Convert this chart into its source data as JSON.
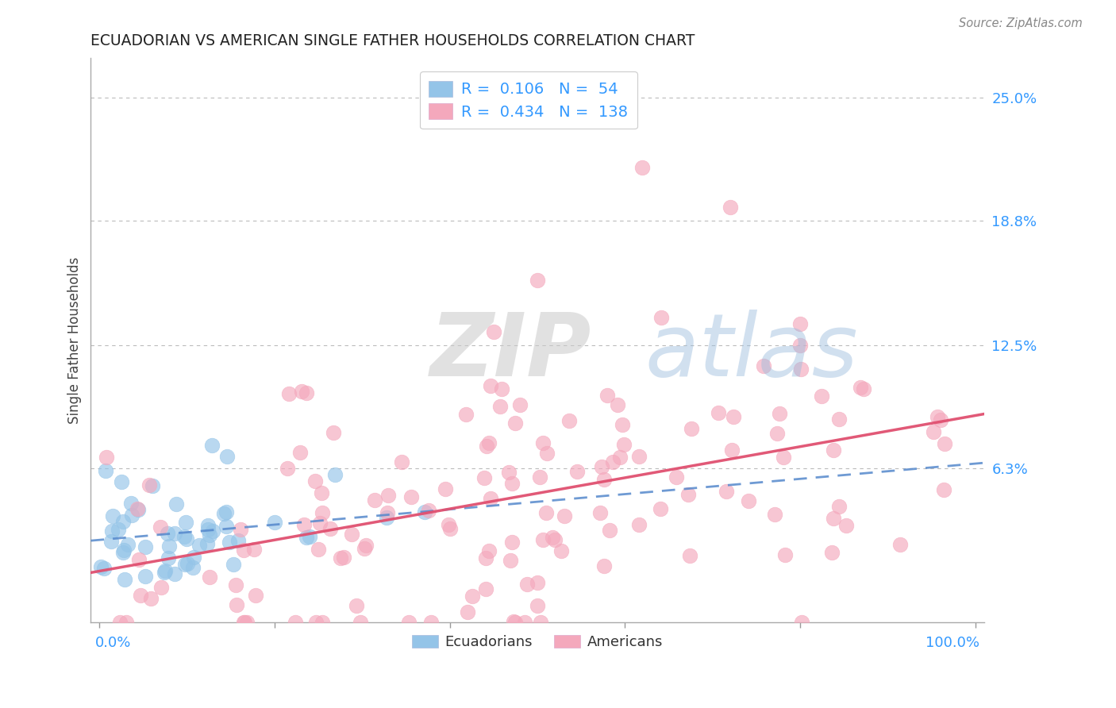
{
  "title": "ECUADORIAN VS AMERICAN SINGLE FATHER HOUSEHOLDS CORRELATION CHART",
  "source": "Source: ZipAtlas.com",
  "ylabel": "Single Father Households",
  "y_ticks": [
    0.0,
    0.063,
    0.125,
    0.188,
    0.25
  ],
  "y_tick_labels": [
    "",
    "6.3%",
    "12.5%",
    "18.8%",
    "25.0%"
  ],
  "ylim": [
    -0.015,
    0.27
  ],
  "xlim": [
    -0.01,
    1.01
  ],
  "blue_color": "#94C4E8",
  "pink_color": "#F4A8BC",
  "trend_blue_color": "#5588CC",
  "trend_pink_color": "#E05070",
  "r_blue": 0.106,
  "n_blue": 54,
  "r_pink": 0.434,
  "n_pink": 138,
  "background_color": "#FFFFFF",
  "grid_color": "#BBBBBB",
  "title_color": "#222222",
  "axis_label_color": "#3399FF",
  "source_color": "#888888",
  "watermark_zip_color": "#C8C8C8",
  "watermark_atlas_color": "#99BBDD"
}
